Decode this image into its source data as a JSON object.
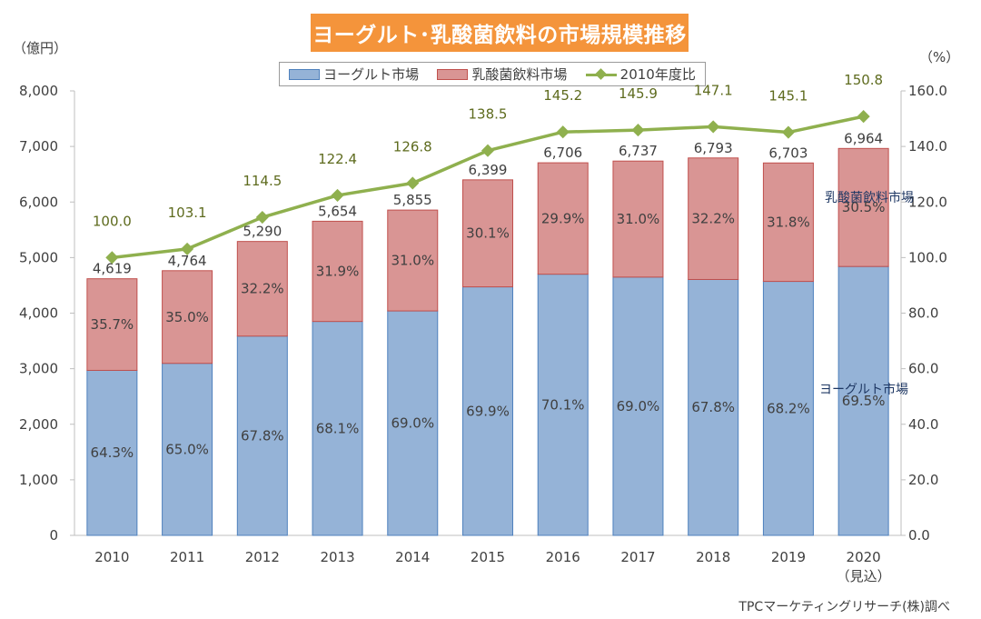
{
  "header": {
    "title": "ヨーグルト･乳酸菌飲料の市場規模推移",
    "unit_left": "（億円）",
    "unit_right": "（%）",
    "source": "TPCマーケティングリサーチ(株)調べ"
  },
  "colors": {
    "title_bg": "#f4943b",
    "yogurt": "#95b3d7",
    "yogurt_edge": "#4f81bd",
    "lactic": "#d99594",
    "lactic_edge": "#c0504d",
    "ratio_line": "#8fb04e"
  },
  "chart_data": {
    "type": "bar",
    "stacked": true,
    "categories": [
      "2010",
      "2011",
      "2012",
      "2013",
      "2014",
      "2015",
      "2016",
      "2017",
      "2018",
      "2019",
      "2020"
    ],
    "category_sublabels": [
      "",
      "",
      "",
      "",
      "",
      "",
      "",
      "",
      "",
      "",
      "（見込）"
    ],
    "series": [
      {
        "name": "ヨーグルト市場",
        "share_labels": [
          "64.3%",
          "65.0%",
          "67.8%",
          "68.1%",
          "69.0%",
          "69.9%",
          "70.1%",
          "69.0%",
          "67.8%",
          "68.2%",
          "69.5%"
        ]
      },
      {
        "name": "乳酸菌飲料市場",
        "share_labels": [
          "35.7%",
          "35.0%",
          "32.2%",
          "31.9%",
          "31.0%",
          "30.1%",
          "29.9%",
          "31.0%",
          "32.2%",
          "31.8%",
          "30.5%"
        ]
      }
    ],
    "totals": [
      4619,
      4764,
      5290,
      5654,
      5855,
      6399,
      6706,
      6737,
      6793,
      6703,
      6964
    ],
    "total_labels": [
      "4,619",
      "4,764",
      "5,290",
      "5,654",
      "5,855",
      "6,399",
      "6,706",
      "6,737",
      "6,793",
      "6,703",
      "6,964"
    ],
    "line_series": {
      "name": "2010年度比",
      "values": [
        100.0,
        103.1,
        114.5,
        122.4,
        126.8,
        138.5,
        145.2,
        145.9,
        147.1,
        145.1,
        150.8
      ],
      "labels": [
        "100.0",
        "103.1",
        "114.5",
        "122.4",
        "126.8",
        "138.5",
        "145.2",
        "145.9",
        "147.1",
        "145.1",
        "150.8"
      ]
    },
    "ylim_left": [
      0,
      8000
    ],
    "yticks_left": [
      "0",
      "1,000",
      "2,000",
      "3,000",
      "4,000",
      "5,000",
      "6,000",
      "7,000",
      "8,000"
    ],
    "ylim_right": [
      0,
      160
    ],
    "yticks_right": [
      "0.0",
      "20.0",
      "40.0",
      "60.0",
      "80.0",
      "100.0",
      "120.0",
      "140.0",
      "160.0"
    ],
    "annotations": [
      "乳酸菌飲料市場",
      "ヨーグルト市場"
    ],
    "legend_position": "top",
    "grid": false
  }
}
